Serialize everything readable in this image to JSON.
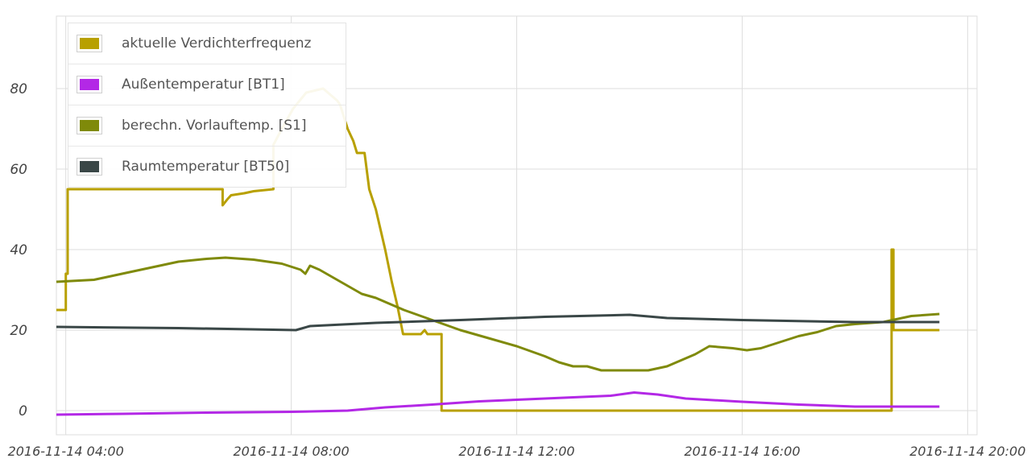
{
  "chart_data": {
    "type": "line",
    "grid": true,
    "legend_placement": "top-left",
    "xlim": [
      "2016-11-14 03:50",
      "2016-11-14 20:10"
    ],
    "ylim": [
      -6,
      98
    ],
    "x_ticks": [
      "2016-11-14 04:00",
      "2016-11-14 08:00",
      "2016-11-14 12:00",
      "2016-11-14 16:00",
      "2016-11-14 20:00"
    ],
    "y_ticks": [
      0,
      20,
      40,
      60,
      80
    ],
    "series": [
      {
        "name": "aktuelle Verdichterfrequenz",
        "color": "#b8a000",
        "points": [
          [
            "2016-11-14 03:50",
            25
          ],
          [
            "2016-11-14 04:00",
            25
          ],
          [
            "2016-11-14 04:00",
            34
          ],
          [
            "2016-11-14 04:02",
            34
          ],
          [
            "2016-11-14 04:02",
            55
          ],
          [
            "2016-11-14 06:47",
            55
          ],
          [
            "2016-11-14 06:47",
            51
          ],
          [
            "2016-11-14 06:52",
            52.5
          ],
          [
            "2016-11-14 06:56",
            53.5
          ],
          [
            "2016-11-14 07:10",
            54
          ],
          [
            "2016-11-14 07:20",
            54.5
          ],
          [
            "2016-11-14 07:41",
            55
          ],
          [
            "2016-11-14 07:41",
            66
          ],
          [
            "2016-11-14 07:50",
            70
          ],
          [
            "2016-11-14 08:02",
            75
          ],
          [
            "2016-11-14 08:16",
            79
          ],
          [
            "2016-11-14 08:34",
            80
          ],
          [
            "2016-11-14 08:49",
            77
          ],
          [
            "2016-11-14 08:52",
            76
          ],
          [
            "2016-11-14 09:00",
            70
          ],
          [
            "2016-11-14 09:06",
            67
          ],
          [
            "2016-11-14 09:10",
            64
          ],
          [
            "2016-11-14 09:18",
            64
          ],
          [
            "2016-11-14 09:23",
            55
          ],
          [
            "2016-11-14 09:30",
            50
          ],
          [
            "2016-11-14 09:40",
            40
          ],
          [
            "2016-11-14 09:47",
            32
          ],
          [
            "2016-11-14 09:53",
            26
          ],
          [
            "2016-11-14 09:59",
            19
          ],
          [
            "2016-11-14 10:18",
            19
          ],
          [
            "2016-11-14 10:22",
            20
          ],
          [
            "2016-11-14 10:25",
            19
          ],
          [
            "2016-11-14 10:40",
            19
          ],
          [
            "2016-11-14 10:40",
            0
          ],
          [
            "2016-11-14 18:39",
            0
          ],
          [
            "2016-11-14 18:39",
            40
          ],
          [
            "2016-11-14 18:41",
            40
          ],
          [
            "2016-11-14 18:41",
            20
          ],
          [
            "2016-11-14 19:30",
            20
          ]
        ]
      },
      {
        "name": "Außentemperatur [BT1]",
        "color": "#b328e6",
        "points": [
          [
            "2016-11-14 03:50",
            -1
          ],
          [
            "2016-11-14 05:00",
            -0.8
          ],
          [
            "2016-11-14 06:30",
            -0.5
          ],
          [
            "2016-11-14 08:00",
            -0.3
          ],
          [
            "2016-11-14 09:00",
            0
          ],
          [
            "2016-11-14 09:40",
            0.8
          ],
          [
            "2016-11-14 10:30",
            1.5
          ],
          [
            "2016-11-14 11:20",
            2.3
          ],
          [
            "2016-11-14 12:00",
            2.7
          ],
          [
            "2016-11-14 13:00",
            3.3
          ],
          [
            "2016-11-14 13:40",
            3.7
          ],
          [
            "2016-11-14 14:05",
            4.5
          ],
          [
            "2016-11-14 14:30",
            4
          ],
          [
            "2016-11-14 15:00",
            3
          ],
          [
            "2016-11-14 16:00",
            2.2
          ],
          [
            "2016-11-14 17:00",
            1.5
          ],
          [
            "2016-11-14 18:00",
            1
          ],
          [
            "2016-11-14 19:30",
            1
          ]
        ]
      },
      {
        "name": "berechn. Vorlauftemp. [S1]",
        "color": "#7f8a0a",
        "points": [
          [
            "2016-11-14 03:50",
            32
          ],
          [
            "2016-11-14 04:30",
            32.5
          ],
          [
            "2016-11-14 05:00",
            34
          ],
          [
            "2016-11-14 05:30",
            35.5
          ],
          [
            "2016-11-14 06:00",
            37
          ],
          [
            "2016-11-14 06:30",
            37.7
          ],
          [
            "2016-11-14 06:50",
            38
          ],
          [
            "2016-11-14 07:20",
            37.5
          ],
          [
            "2016-11-14 07:50",
            36.5
          ],
          [
            "2016-11-14 08:10",
            35
          ],
          [
            "2016-11-14 08:15",
            34
          ],
          [
            "2016-11-14 08:20",
            36
          ],
          [
            "2016-11-14 08:30",
            35
          ],
          [
            "2016-11-14 08:45",
            33
          ],
          [
            "2016-11-14 09:00",
            31
          ],
          [
            "2016-11-14 09:15",
            29
          ],
          [
            "2016-11-14 09:30",
            28
          ],
          [
            "2016-11-14 09:45",
            26.5
          ],
          [
            "2016-11-14 10:00",
            25
          ],
          [
            "2016-11-14 10:30",
            22.5
          ],
          [
            "2016-11-14 11:00",
            20
          ],
          [
            "2016-11-14 11:30",
            18
          ],
          [
            "2016-11-14 12:00",
            16
          ],
          [
            "2016-11-14 12:30",
            13.5
          ],
          [
            "2016-11-14 12:45",
            12
          ],
          [
            "2016-11-14 13:00",
            11
          ],
          [
            "2016-11-14 13:15",
            11
          ],
          [
            "2016-11-14 13:30",
            10
          ],
          [
            "2016-11-14 14:00",
            10
          ],
          [
            "2016-11-14 14:20",
            10
          ],
          [
            "2016-11-14 14:40",
            11
          ],
          [
            "2016-11-14 14:55",
            12.5
          ],
          [
            "2016-11-14 15:10",
            14
          ],
          [
            "2016-11-14 15:25",
            16
          ],
          [
            "2016-11-14 15:50",
            15.5
          ],
          [
            "2016-11-14 16:05",
            15
          ],
          [
            "2016-11-14 16:20",
            15.5
          ],
          [
            "2016-11-14 16:40",
            17
          ],
          [
            "2016-11-14 17:00",
            18.5
          ],
          [
            "2016-11-14 17:20",
            19.5
          ],
          [
            "2016-11-14 17:40",
            21
          ],
          [
            "2016-11-14 18:00",
            21.5
          ],
          [
            "2016-11-14 18:30",
            22
          ],
          [
            "2016-11-14 19:00",
            23.5
          ],
          [
            "2016-11-14 19:30",
            24
          ]
        ]
      },
      {
        "name": "Raumtemperatur [BT50]",
        "color": "#3a4747",
        "points": [
          [
            "2016-11-14 03:50",
            20.8
          ],
          [
            "2016-11-14 06:00",
            20.5
          ],
          [
            "2016-11-14 08:05",
            20
          ],
          [
            "2016-11-14 08:20",
            21
          ],
          [
            "2016-11-14 09:30",
            21.8
          ],
          [
            "2016-11-14 11:00",
            22.5
          ],
          [
            "2016-11-14 12:30",
            23.3
          ],
          [
            "2016-11-14 14:00",
            23.8
          ],
          [
            "2016-11-14 14:40",
            23
          ],
          [
            "2016-11-14 16:00",
            22.5
          ],
          [
            "2016-11-14 18:00",
            22
          ],
          [
            "2016-11-14 19:30",
            22
          ]
        ]
      }
    ]
  }
}
